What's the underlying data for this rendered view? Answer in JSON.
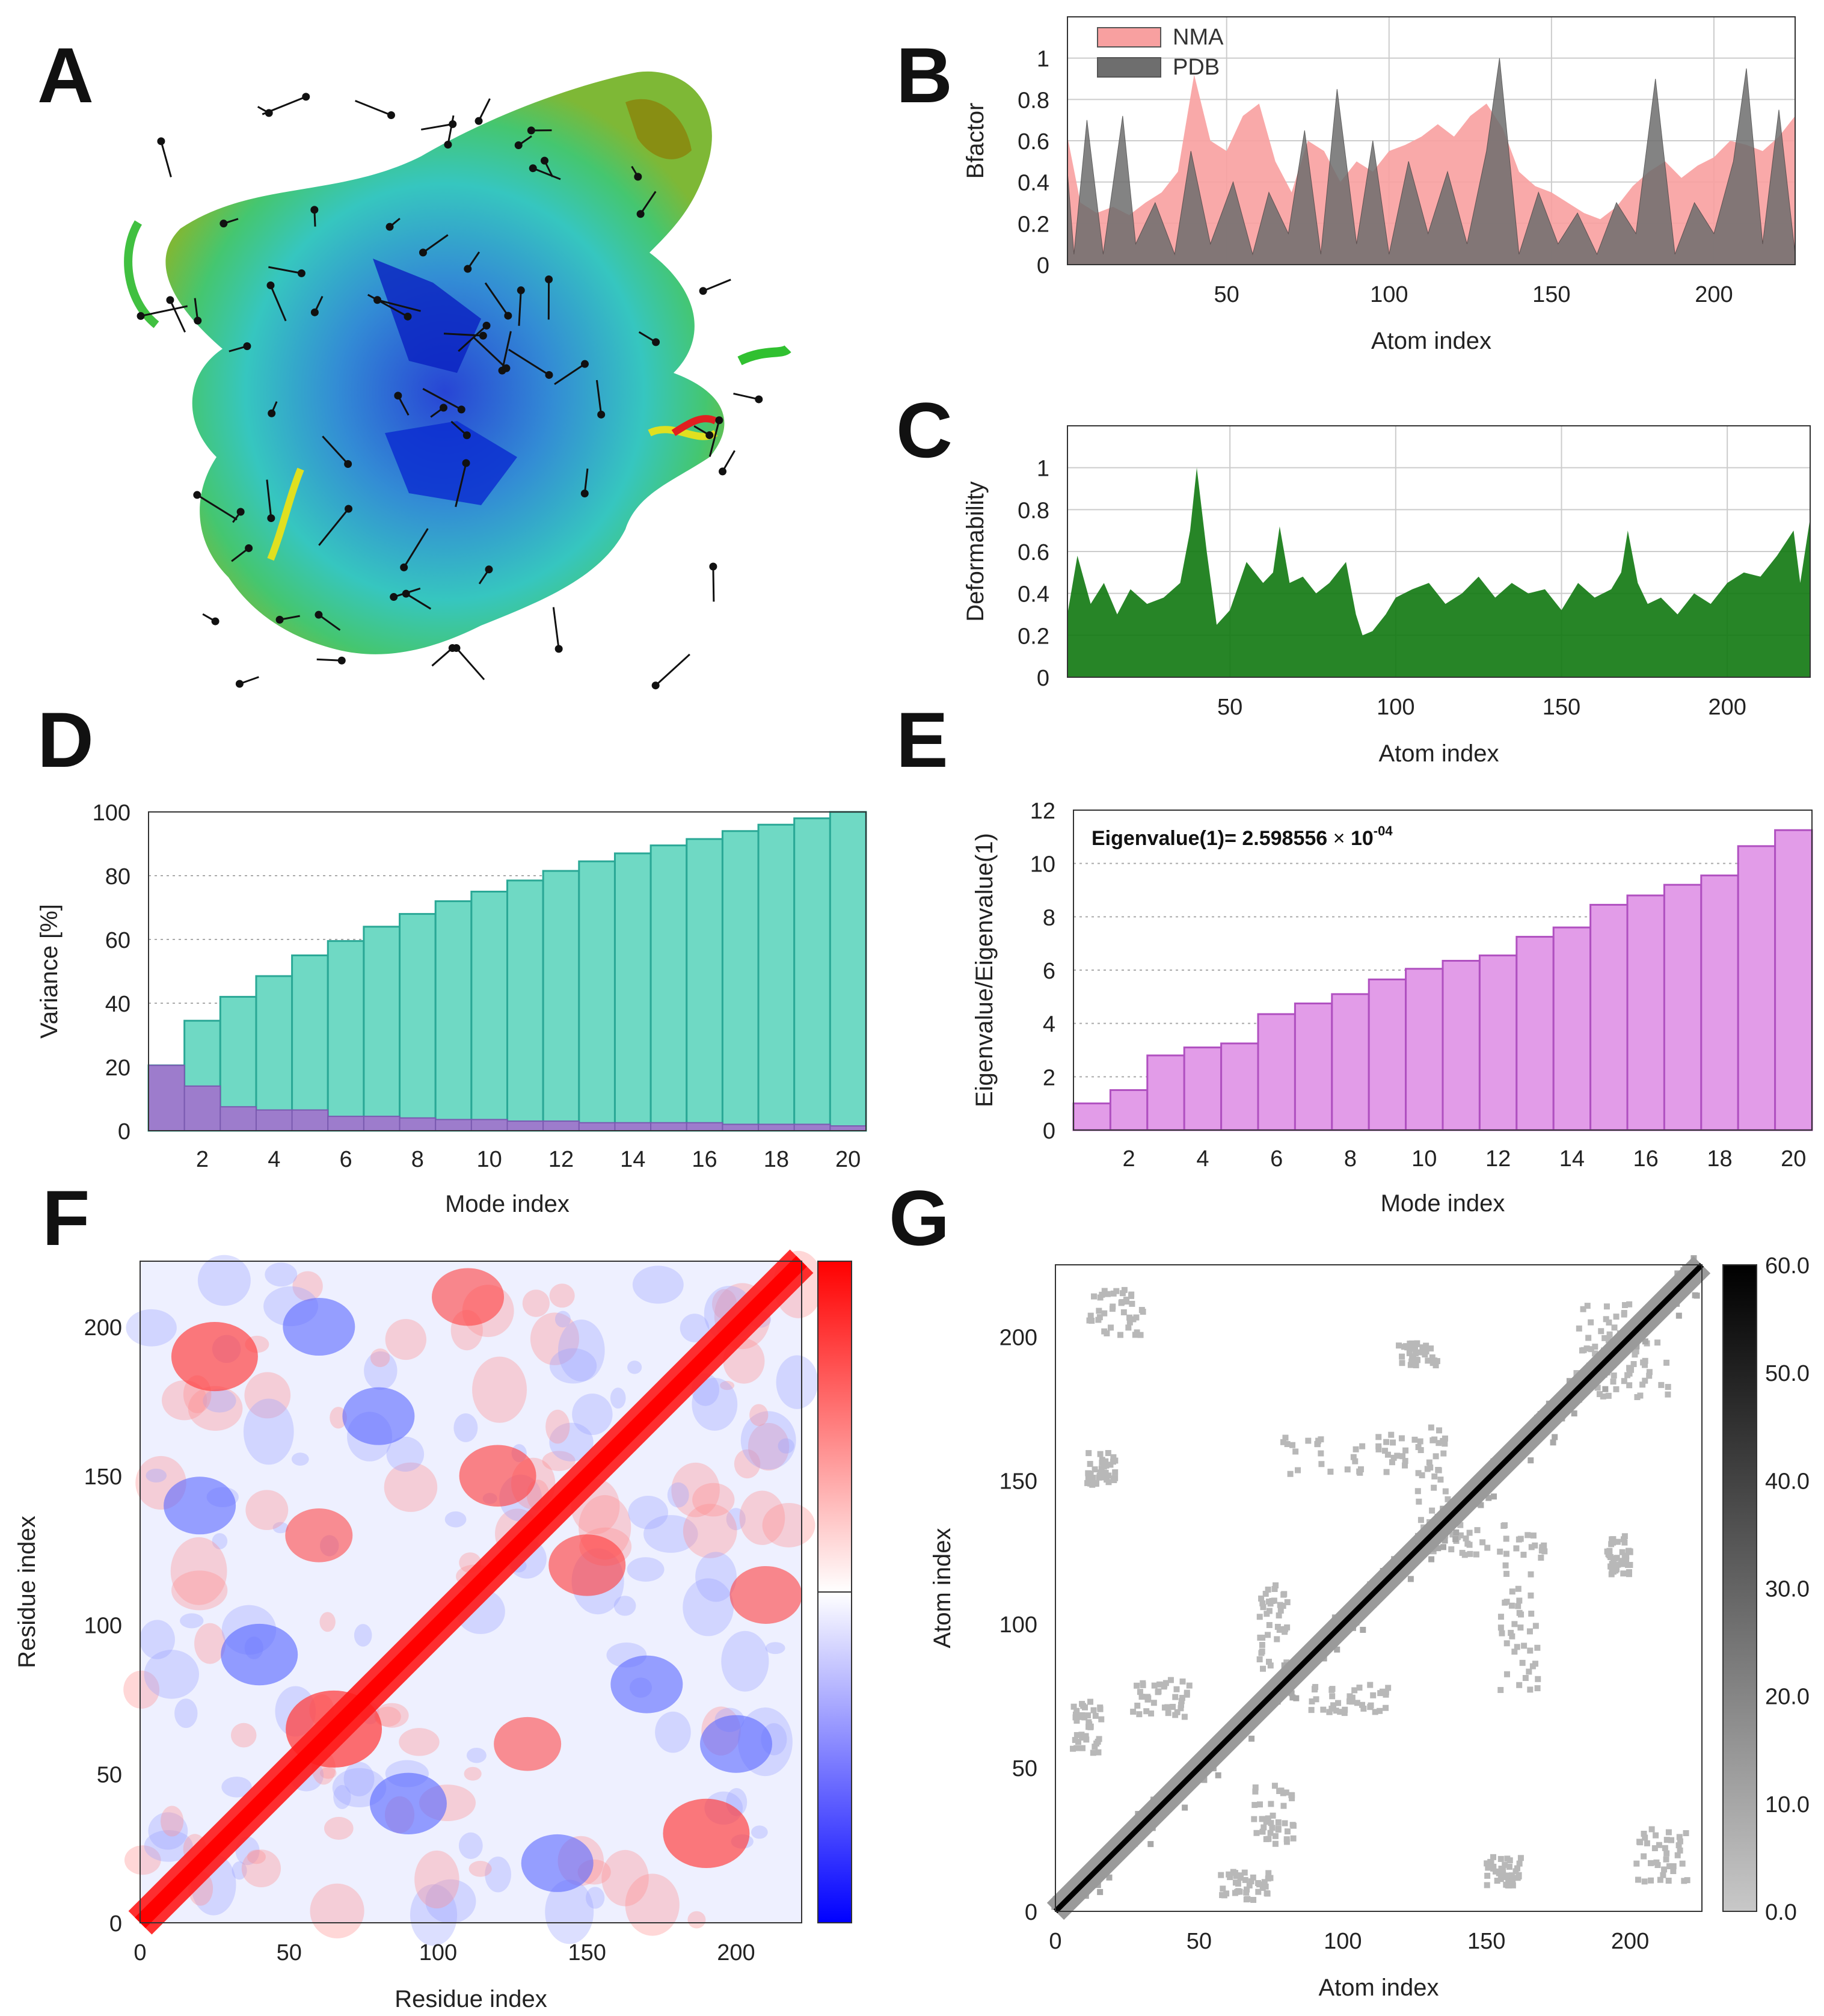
{
  "panels": {
    "A": {
      "letter": "A"
    },
    "B": {
      "letter": "B"
    },
    "C": {
      "letter": "C"
    },
    "D": {
      "letter": "D"
    },
    "E": {
      "letter": "E"
    },
    "F": {
      "letter": "F"
    },
    "G": {
      "letter": "G"
    }
  },
  "colors": {
    "nma_fill": "#f8a0a0",
    "pdb_fill": "#6e6e6e",
    "deform_fill": "#107810",
    "variance_cum": "#6fd9c4",
    "variance_ind": "#9d7ccc",
    "eigen_bar": "#e29ce8",
    "grid": "#cccccc"
  },
  "chart_data": [
    {
      "id": "B",
      "type": "area",
      "title": "",
      "xlabel": "Atom index",
      "ylabel": "Bfactor",
      "xlim": [
        1,
        225
      ],
      "ylim": [
        0,
        1.2
      ],
      "xticks": [
        50,
        100,
        150,
        200
      ],
      "yticks": [
        0,
        0.2,
        0.4,
        0.6,
        0.8,
        1
      ],
      "ytick_labels": [
        "0",
        "0.2",
        "0.4",
        "0.6",
        "0.8",
        "1"
      ],
      "legend": [
        "NMA",
        "PDB"
      ],
      "legend_position": "top-left",
      "series": [
        {
          "name": "NMA",
          "x": [
            1,
            5,
            10,
            15,
            20,
            25,
            30,
            35,
            40,
            45,
            50,
            55,
            60,
            65,
            70,
            75,
            80,
            85,
            90,
            95,
            100,
            105,
            110,
            115,
            120,
            125,
            130,
            135,
            140,
            145,
            150,
            155,
            160,
            165,
            170,
            175,
            180,
            185,
            190,
            195,
            200,
            205,
            210,
            215,
            220,
            225
          ],
          "values": [
            0.62,
            0.3,
            0.25,
            0.28,
            0.24,
            0.3,
            0.35,
            0.45,
            0.92,
            0.6,
            0.55,
            0.72,
            0.78,
            0.5,
            0.35,
            0.6,
            0.55,
            0.4,
            0.5,
            0.45,
            0.55,
            0.58,
            0.62,
            0.68,
            0.62,
            0.72,
            0.78,
            0.66,
            0.45,
            0.38,
            0.35,
            0.3,
            0.25,
            0.22,
            0.28,
            0.38,
            0.45,
            0.5,
            0.42,
            0.48,
            0.52,
            0.6,
            0.58,
            0.55,
            0.62,
            0.72
          ]
        },
        {
          "name": "PDB",
          "x": [
            1,
            3,
            7,
            12,
            18,
            22,
            28,
            34,
            39,
            45,
            52,
            58,
            63,
            69,
            74,
            79,
            84,
            90,
            95,
            100,
            106,
            112,
            118,
            124,
            130,
            134,
            140,
            146,
            152,
            158,
            164,
            170,
            176,
            182,
            188,
            194,
            200,
            206,
            210,
            215,
            220,
            225
          ],
          "values": [
            0.45,
            0.05,
            0.7,
            0.05,
            0.72,
            0.1,
            0.3,
            0.05,
            0.55,
            0.1,
            0.4,
            0.05,
            0.35,
            0.15,
            0.65,
            0.05,
            0.85,
            0.1,
            0.6,
            0.05,
            0.5,
            0.15,
            0.45,
            0.1,
            0.55,
            1.0,
            0.05,
            0.35,
            0.1,
            0.25,
            0.05,
            0.3,
            0.15,
            0.9,
            0.05,
            0.3,
            0.15,
            0.5,
            0.95,
            0.1,
            0.75,
            0.05
          ]
        }
      ]
    },
    {
      "id": "C",
      "type": "area",
      "title": "",
      "xlabel": "Atom index",
      "ylabel": "Deformability",
      "xlim": [
        1,
        225
      ],
      "ylim": [
        0,
        1.2
      ],
      "xticks": [
        50,
        100,
        150,
        200
      ],
      "yticks": [
        0,
        0.2,
        0.4,
        0.6,
        0.8,
        1
      ],
      "ytick_labels": [
        "0",
        "0.2",
        "0.4",
        "0.6",
        "0.8",
        "1"
      ],
      "series": [
        {
          "name": "Deformability",
          "x": [
            1,
            4,
            8,
            12,
            16,
            20,
            25,
            30,
            35,
            38,
            40,
            43,
            46,
            50,
            55,
            60,
            63,
            65,
            68,
            72,
            76,
            80,
            85,
            88,
            90,
            93,
            97,
            100,
            105,
            110,
            115,
            120,
            125,
            130,
            135,
            140,
            145,
            150,
            155,
            160,
            165,
            168,
            170,
            173,
            176,
            180,
            185,
            190,
            195,
            200,
            205,
            210,
            215,
            220,
            222,
            225
          ],
          "values": [
            0.3,
            0.58,
            0.35,
            0.45,
            0.3,
            0.42,
            0.35,
            0.38,
            0.45,
            0.7,
            1.0,
            0.6,
            0.25,
            0.32,
            0.55,
            0.45,
            0.5,
            0.72,
            0.45,
            0.48,
            0.4,
            0.45,
            0.55,
            0.3,
            0.2,
            0.22,
            0.3,
            0.38,
            0.42,
            0.45,
            0.35,
            0.4,
            0.48,
            0.38,
            0.45,
            0.4,
            0.42,
            0.32,
            0.45,
            0.38,
            0.42,
            0.5,
            0.7,
            0.45,
            0.35,
            0.38,
            0.3,
            0.4,
            0.35,
            0.45,
            0.5,
            0.48,
            0.58,
            0.7,
            0.45,
            0.76
          ]
        }
      ]
    },
    {
      "id": "D",
      "type": "bar",
      "title": "",
      "xlabel": "Mode index",
      "ylabel": "Variance [%]",
      "ylim": [
        0,
        100
      ],
      "yticks": [
        0,
        20,
        40,
        60,
        80,
        100
      ],
      "xticks": [
        2,
        4,
        6,
        8,
        10,
        12,
        14,
        16,
        18,
        20
      ],
      "categories": [
        1,
        2,
        3,
        4,
        5,
        6,
        7,
        8,
        9,
        10,
        11,
        12,
        13,
        14,
        15,
        16,
        17,
        18,
        19,
        20
      ],
      "series": [
        {
          "name": "Cumulative variance",
          "values": [
            20.5,
            34.5,
            42,
            48.5,
            55,
            59.5,
            64,
            68,
            72,
            75,
            78.5,
            81.5,
            84.5,
            87,
            89.5,
            91.5,
            94,
            96,
            98,
            100
          ]
        },
        {
          "name": "Individual variance",
          "values": [
            20.5,
            14,
            7.5,
            6.5,
            6.5,
            4.5,
            4.5,
            4,
            3.5,
            3.5,
            3,
            3,
            2.5,
            2.5,
            2.5,
            2.5,
            2,
            2,
            2,
            1.5
          ]
        }
      ]
    },
    {
      "id": "E",
      "type": "bar",
      "title": "",
      "xlabel": "Mode index",
      "ylabel": "Eigenvalue/Eigenvalue(1)",
      "annotation": {
        "text": "Eigenvalue(1)= 2.598556",
        "times": "×",
        "base": "10",
        "exponent": "-04"
      },
      "ylim": [
        0,
        12
      ],
      "yticks": [
        0,
        2,
        4,
        6,
        8,
        10,
        12
      ],
      "xticks": [
        2,
        4,
        6,
        8,
        10,
        12,
        14,
        16,
        18,
        20
      ],
      "categories": [
        1,
        2,
        3,
        4,
        5,
        6,
        7,
        8,
        9,
        10,
        11,
        12,
        13,
        14,
        15,
        16,
        17,
        18,
        19,
        20
      ],
      "values": [
        1.0,
        1.5,
        2.8,
        3.1,
        3.25,
        4.35,
        4.75,
        5.1,
        5.65,
        6.05,
        6.35,
        6.55,
        7.25,
        7.6,
        8.45,
        8.8,
        9.2,
        9.55,
        10.65,
        11.25
      ]
    },
    {
      "id": "F",
      "type": "heatmap",
      "title": "",
      "xlabel": "Residue index",
      "ylabel": "Residue index",
      "xlim": [
        0,
        222
      ],
      "ylim": [
        0,
        222
      ],
      "xticks": [
        0,
        50,
        100,
        150,
        200
      ],
      "yticks": [
        0,
        50,
        100,
        150,
        200
      ],
      "colorbar": {
        "from": "#0000ff",
        "mid": "#ffffff",
        "to": "#ff0000",
        "range": [
          -1,
          1
        ]
      },
      "blobs": [
        {
          "x": 65,
          "y": 65,
          "v": 1
        },
        {
          "x": 190,
          "y": 30,
          "v": 0.8
        },
        {
          "x": 25,
          "y": 190,
          "v": 0.8
        },
        {
          "x": 120,
          "y": 150,
          "v": 0.6
        },
        {
          "x": 150,
          "y": 120,
          "v": 0.6
        },
        {
          "x": 90,
          "y": 40,
          "v": -0.6
        },
        {
          "x": 40,
          "y": 90,
          "v": -0.6
        },
        {
          "x": 170,
          "y": 80,
          "v": -0.5
        },
        {
          "x": 80,
          "y": 170,
          "v": -0.5
        },
        {
          "x": 140,
          "y": 20,
          "v": -0.5
        },
        {
          "x": 20,
          "y": 140,
          "v": -0.5
        },
        {
          "x": 210,
          "y": 110,
          "v": 0.5
        },
        {
          "x": 110,
          "y": 210,
          "v": 0.5
        },
        {
          "x": 60,
          "y": 200,
          "v": -0.5
        },
        {
          "x": 200,
          "y": 60,
          "v": -0.5
        },
        {
          "x": 130,
          "y": 60,
          "v": 0.4
        },
        {
          "x": 60,
          "y": 130,
          "v": 0.4
        }
      ]
    },
    {
      "id": "G",
      "type": "heatmap",
      "title": "",
      "xlabel": "Atom index",
      "ylabel": "Atom index",
      "xlim": [
        0,
        225
      ],
      "ylim": [
        0,
        225
      ],
      "xticks": [
        0,
        50,
        100,
        150,
        200
      ],
      "yticks": [
        0,
        50,
        100,
        150,
        200
      ],
      "colorbar": {
        "from": "#c8c8c8",
        "to": "#000000",
        "range": [
          0,
          60
        ],
        "ticks": [
          "0.0",
          "10.0",
          "20.0",
          "30.0",
          "40.0",
          "50.0",
          "60.0"
        ]
      },
      "contact_clusters": [
        {
          "x": 20,
          "y": 210,
          "w": 20,
          "h": 18
        },
        {
          "x": 210,
          "y": 20,
          "w": 18,
          "h": 20
        },
        {
          "x": 15,
          "y": 155,
          "w": 10,
          "h": 12
        },
        {
          "x": 155,
          "y": 15,
          "w": 12,
          "h": 10
        },
        {
          "x": 100,
          "y": 160,
          "w": 45,
          "h": 14
        },
        {
          "x": 160,
          "y": 100,
          "w": 14,
          "h": 45
        },
        {
          "x": 35,
          "y": 75,
          "w": 22,
          "h": 14
        },
        {
          "x": 75,
          "y": 35,
          "w": 14,
          "h": 22
        },
        {
          "x": 10,
          "y": 65,
          "w": 10,
          "h": 18
        },
        {
          "x": 65,
          "y": 10,
          "w": 18,
          "h": 10
        },
        {
          "x": 195,
          "y": 125,
          "w": 8,
          "h": 14
        },
        {
          "x": 125,
          "y": 195,
          "w": 14,
          "h": 8
        },
        {
          "x": 150,
          "y": 130,
          "w": 40,
          "h": 12
        },
        {
          "x": 130,
          "y": 150,
          "w": 12,
          "h": 40
        },
        {
          "x": 190,
          "y": 200,
          "w": 20,
          "h": 25
        },
        {
          "x": 200,
          "y": 190,
          "w": 25,
          "h": 20
        },
        {
          "x": 100,
          "y": 75,
          "w": 30,
          "h": 10
        },
        {
          "x": 75,
          "y": 100,
          "w": 10,
          "h": 30
        }
      ]
    }
  ]
}
